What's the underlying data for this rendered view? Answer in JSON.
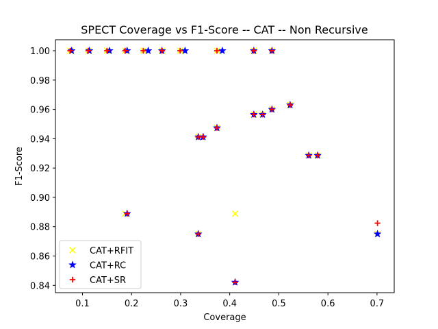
{
  "chart_data": {
    "type": "scatter",
    "title": "SPECT Coverage vs F1-Score -- CAT -- Non Recursive",
    "xlabel": "Coverage",
    "ylabel": "F1-Score",
    "xlim": [
      0.045,
      0.735
    ],
    "ylim": [
      0.835,
      1.0075
    ],
    "xticks": [
      0.1,
      0.2,
      0.3,
      0.4,
      0.5,
      0.6,
      0.7
    ],
    "xtick_labels": [
      "0.1",
      "0.2",
      "0.3",
      "0.4",
      "0.5",
      "0.6",
      "0.7"
    ],
    "yticks": [
      0.84,
      0.86,
      0.88,
      0.9,
      0.92,
      0.94,
      0.96,
      0.98,
      1.0
    ],
    "ytick_labels": [
      "0.84",
      "0.86",
      "0.88",
      "0.90",
      "0.92",
      "0.94",
      "0.96",
      "0.98",
      "1.00"
    ],
    "grid": false,
    "legend_position": "lower-left",
    "series": [
      {
        "name": "CAT+RFIT",
        "marker": "x",
        "color": "#ffff00",
        "points": [
          [
            0.075,
            1.0
          ],
          [
            0.112,
            1.0
          ],
          [
            0.15,
            1.0
          ],
          [
            0.187,
            1.0
          ],
          [
            0.224,
            1.0
          ],
          [
            0.262,
            1.0
          ],
          [
            0.299,
            1.0
          ],
          [
            0.374,
            1.0
          ],
          [
            0.449,
            1.0
          ],
          [
            0.486,
            1.0
          ],
          [
            0.336,
            0.9412
          ],
          [
            0.374,
            0.9474
          ],
          [
            0.449,
            0.9565
          ],
          [
            0.467,
            0.9565
          ],
          [
            0.486,
            0.96
          ],
          [
            0.523,
            0.963
          ],
          [
            0.561,
            0.9286
          ],
          [
            0.579,
            0.9286
          ],
          [
            0.187,
            0.8889
          ],
          [
            0.336,
            0.875
          ],
          [
            0.411,
            0.8889
          ],
          [
            0.701,
            0.875
          ]
        ]
      },
      {
        "name": "CAT+RC",
        "marker": "star",
        "color": "#0000ff",
        "points": [
          [
            0.078,
            1.0
          ],
          [
            0.114,
            1.0
          ],
          [
            0.155,
            1.0
          ],
          [
            0.191,
            1.0
          ],
          [
            0.234,
            1.0
          ],
          [
            0.262,
            1.0
          ],
          [
            0.309,
            1.0
          ],
          [
            0.385,
            1.0
          ],
          [
            0.449,
            1.0
          ],
          [
            0.486,
            1.0
          ],
          [
            0.336,
            0.9412
          ],
          [
            0.346,
            0.9412
          ],
          [
            0.374,
            0.9474
          ],
          [
            0.449,
            0.9565
          ],
          [
            0.467,
            0.9565
          ],
          [
            0.486,
            0.96
          ],
          [
            0.523,
            0.963
          ],
          [
            0.561,
            0.9286
          ],
          [
            0.579,
            0.9286
          ],
          [
            0.191,
            0.8889
          ],
          [
            0.336,
            0.875
          ],
          [
            0.411,
            0.8421
          ],
          [
            0.701,
            0.875
          ]
        ]
      },
      {
        "name": "CAT+SR",
        "marker": "plus",
        "color": "#ff0000",
        "points": [
          [
            0.075,
            1.0
          ],
          [
            0.112,
            1.0
          ],
          [
            0.15,
            1.0
          ],
          [
            0.187,
            1.0
          ],
          [
            0.224,
            1.0
          ],
          [
            0.262,
            1.0
          ],
          [
            0.299,
            1.0
          ],
          [
            0.374,
            1.0
          ],
          [
            0.449,
            1.0
          ],
          [
            0.486,
            1.0
          ],
          [
            0.336,
            0.9412
          ],
          [
            0.346,
            0.9412
          ],
          [
            0.374,
            0.9474
          ],
          [
            0.449,
            0.9565
          ],
          [
            0.467,
            0.9565
          ],
          [
            0.486,
            0.96
          ],
          [
            0.523,
            0.963
          ],
          [
            0.561,
            0.9286
          ],
          [
            0.579,
            0.9286
          ],
          [
            0.191,
            0.8889
          ],
          [
            0.336,
            0.875
          ],
          [
            0.411,
            0.8421
          ],
          [
            0.701,
            0.8824
          ]
        ]
      }
    ]
  }
}
